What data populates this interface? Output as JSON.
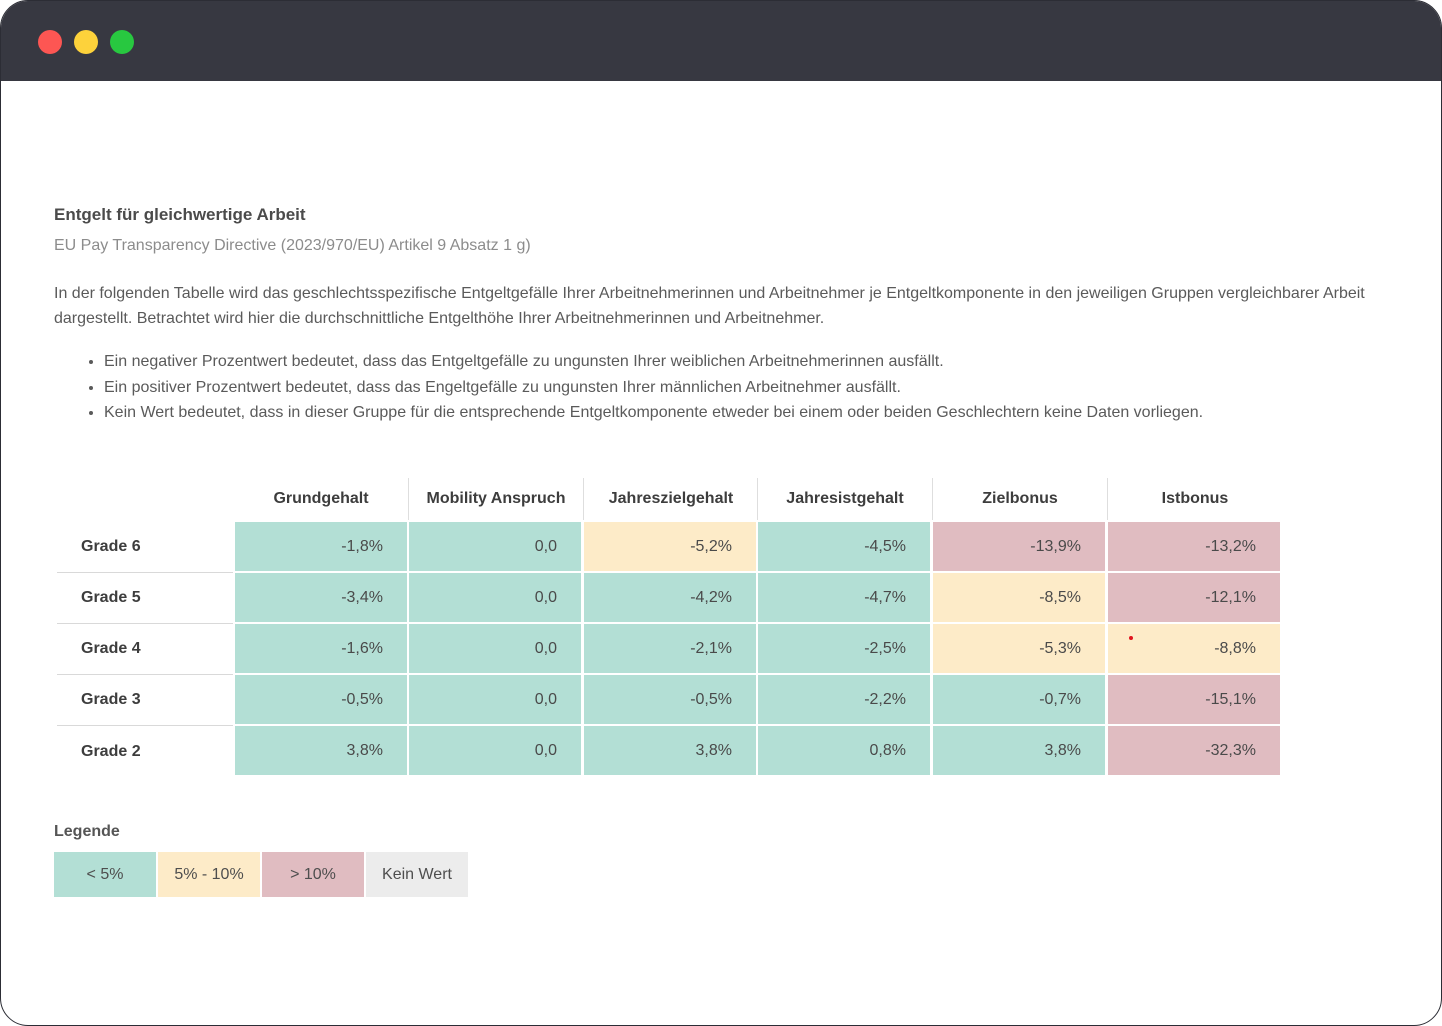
{
  "window": {
    "controls": {
      "close_color": "#fd5653",
      "minimize_color": "#fdd23b",
      "maximize_color": "#28c840"
    }
  },
  "header": {
    "title": "Entgelt für gleichwertige Arbeit",
    "subtitle": "EU Pay Transparency Directive (2023/970/EU) Artikel 9 Absatz 1 g)"
  },
  "intro": "In der folgenden Tabelle wird das geschlechtsspezifische Entgeltgefälle Ihrer Arbeitnehmerinnen und Arbeitnehmer je Entgeltkomponente in den jeweiligen Gruppen vergleichbarer Arbeit dargestellt. Betrachtet wird hier die durchschnittliche Entgelthöhe Ihrer Arbeitnehmerinnen und Arbeitnehmer.",
  "bullets": [
    "Ein negativer Prozentwert bedeutet, dass das Entgeltgefälle zu ungunsten Ihrer weiblichen Arbeitnehmerinnen ausfällt.",
    "Ein positiver Prozentwert bedeutet, dass das Engeltgefälle zu ungunsten Ihrer männlichen Arbeitnehmer ausfällt.",
    "Kein Wert bedeutet, dass in dieser Gruppe für die entsprechende Entgeltkomponente etweder bei einem oder beiden Geschlechtern keine Daten vorliegen."
  ],
  "table": {
    "columns": [
      "Grundgehalt",
      "Mobility Anspruch",
      "Jahreszielgehalt",
      "Jahresistgehalt",
      "Zielbonus",
      "Istbonus"
    ],
    "rows": [
      {
        "label": "Grade 6",
        "values": [
          "-1,8%",
          "0,0",
          "-5,2%",
          "-4,5%",
          "-13,9%",
          "-13,2%"
        ],
        "levels": [
          "low",
          "low",
          "mid",
          "low",
          "high",
          "high"
        ]
      },
      {
        "label": "Grade 5",
        "values": [
          "-3,4%",
          "0,0",
          "-4,2%",
          "-4,7%",
          "-8,5%",
          "-12,1%"
        ],
        "levels": [
          "low",
          "low",
          "low",
          "low",
          "mid",
          "high"
        ]
      },
      {
        "label": "Grade 4",
        "values": [
          "-1,6%",
          "0,0",
          "-2,1%",
          "-2,5%",
          "-5,3%",
          "-8,8%"
        ],
        "levels": [
          "low",
          "low",
          "low",
          "low",
          "mid",
          "mid"
        ]
      },
      {
        "label": "Grade 3",
        "values": [
          "-0,5%",
          "0,0",
          "-0,5%",
          "-2,2%",
          "-0,7%",
          "-15,1%"
        ],
        "levels": [
          "low",
          "low",
          "low",
          "low",
          "low",
          "high"
        ]
      },
      {
        "label": "Grade 2",
        "values": [
          "3,8%",
          "0,0",
          "3,8%",
          "0,8%",
          "3,8%",
          "-32,3%"
        ],
        "levels": [
          "low",
          "low",
          "low",
          "low",
          "low",
          "high"
        ]
      }
    ]
  },
  "legend": {
    "title": "Legende",
    "items": [
      {
        "label": "< 5%",
        "level": "low"
      },
      {
        "label": "5% - 10%",
        "level": "mid"
      },
      {
        "label": "> 10%",
        "level": "high"
      },
      {
        "label": "Kein Wert",
        "level": "none"
      }
    ]
  },
  "colors": {
    "low": "#b3dfd5",
    "mid": "#fdebc8",
    "high": "#e0bcc1",
    "none": "#ececec",
    "titlebar": "#373841"
  }
}
